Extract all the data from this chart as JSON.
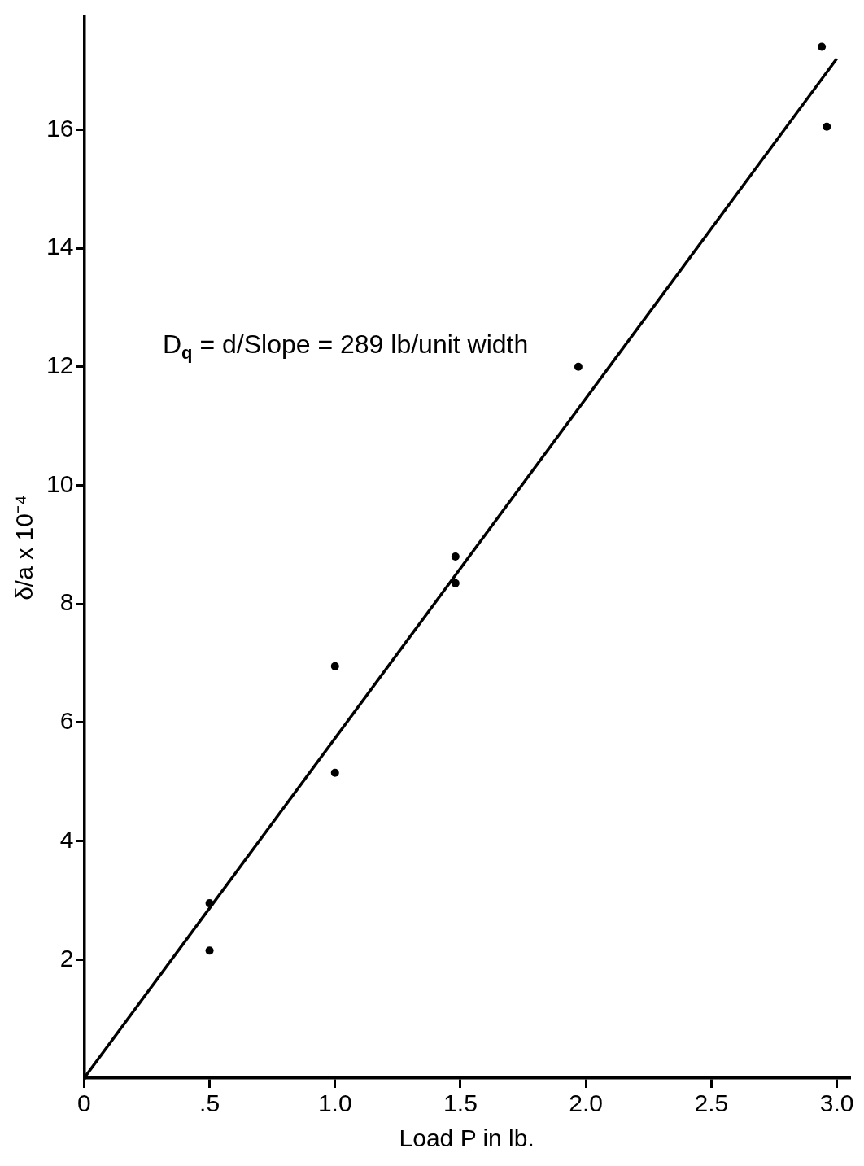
{
  "chart_data": {
    "type": "scatter",
    "xlabel": "Load P in lb.",
    "ylabel": "δ/a x 10⁻⁴",
    "annotations": [
      "D$_{q}$ = d/Slope = 289 lb/unit width"
    ],
    "xlim": [
      0,
      3.05
    ],
    "ylim": [
      0,
      17.9
    ],
    "xticks": [
      0,
      {
        "value": 0.5,
        "label": ".5"
      },
      {
        "value": 1,
        "label": "1.0"
      },
      1.5,
      {
        "value": 2,
        "label": "2.0"
      },
      2.5,
      {
        "value": 3,
        "label": "3.0"
      }
    ],
    "yticks": [
      2,
      4,
      6,
      8,
      10,
      12,
      14,
      16
    ],
    "grid": false,
    "legend": false,
    "marker": "circle",
    "series": [
      {
        "type": "scatter",
        "color": "#000000",
        "x": [
          0.5,
          0.5,
          1.0,
          1.0,
          1.48,
          1.48,
          1.97,
          2.94,
          2.96
        ],
        "values": [
          2.95,
          2.15,
          6.95,
          5.15,
          8.8,
          8.35,
          12.0,
          17.4,
          16.05
        ]
      },
      {
        "type": "line",
        "color": "#000000",
        "x": [
          0,
          3.0
        ],
        "values": [
          0,
          17.2
        ],
        "marker": "none",
        "line_style": "solid"
      }
    ]
  }
}
